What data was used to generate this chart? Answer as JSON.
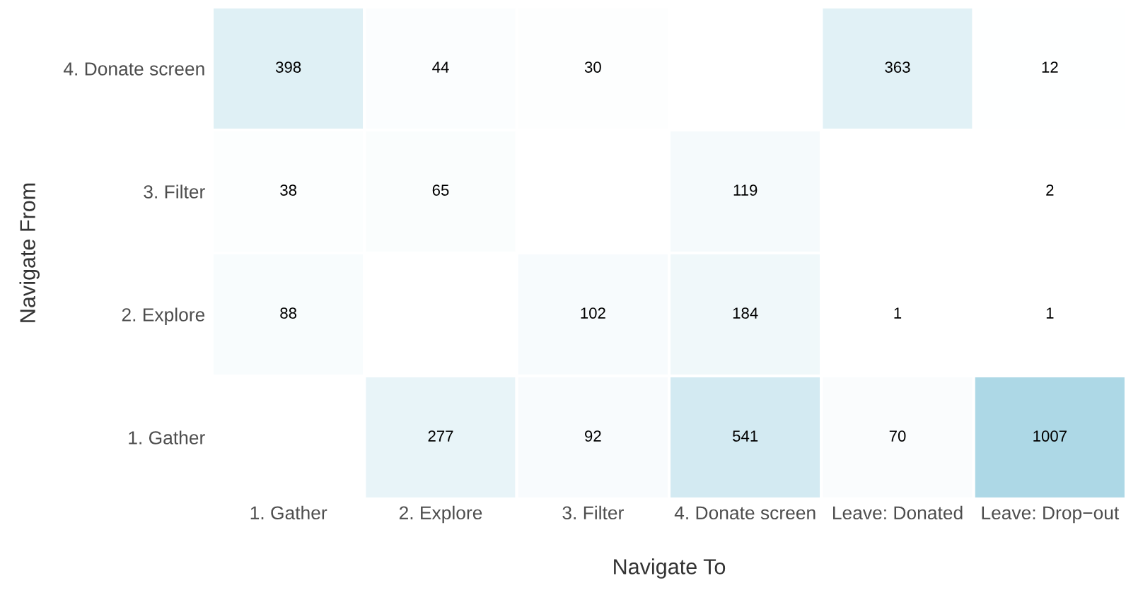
{
  "chart_data": {
    "type": "heatmap",
    "xlabel": "Navigate To",
    "ylabel": "Navigate From",
    "categories": [
      "1. Gather",
      "2. Explore",
      "3. Filter",
      "4. Donate screen",
      "Leave: Donated",
      "Leave: Drop−out"
    ],
    "y_categories": [
      "4. Donate screen",
      "3. Filter",
      "2. Explore",
      "1. Gather"
    ],
    "cells": [
      [
        398,
        44,
        30,
        null,
        363,
        12
      ],
      [
        38,
        65,
        null,
        119,
        null,
        2
      ],
      [
        88,
        null,
        102,
        184,
        1,
        1
      ],
      [
        null,
        277,
        92,
        541,
        70,
        1007
      ]
    ],
    "color": "#add8e6",
    "data_labels": true,
    "grid": false
  }
}
